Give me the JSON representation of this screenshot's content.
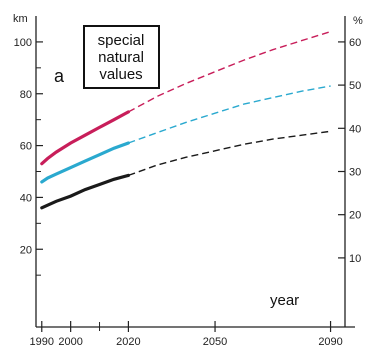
{
  "chart_data": {
    "type": "line",
    "panel_letter": "a",
    "box_lines": [
      "special",
      "natural",
      "values"
    ],
    "y_unit_left": "km",
    "y_unit_right": "%",
    "xlabel": "year",
    "x_ticks": [
      1990,
      2000,
      2020,
      2050,
      2090
    ],
    "xlim": [
      1988,
      2095
    ],
    "y_left_ticks": [
      20,
      40,
      60,
      80,
      100
    ],
    "y_left_lim": [
      -10,
      110
    ],
    "y_right_ticks": [
      10,
      20,
      30,
      40,
      50,
      60
    ],
    "grid": false,
    "series": [
      {
        "color": "#c81e5a",
        "solid": [
          [
            1990,
            53
          ],
          [
            1992,
            55
          ],
          [
            1995,
            57.5
          ],
          [
            2000,
            61
          ],
          [
            2005,
            64
          ],
          [
            2010,
            67
          ],
          [
            2015,
            70
          ],
          [
            2020,
            73
          ]
        ],
        "dashed": [
          [
            2020,
            73
          ],
          [
            2030,
            79
          ],
          [
            2040,
            84
          ],
          [
            2050,
            88.5
          ],
          [
            2060,
            93
          ],
          [
            2070,
            97
          ],
          [
            2080,
            100.5
          ],
          [
            2090,
            104
          ]
        ]
      },
      {
        "color": "#2aa9cf",
        "solid": [
          [
            1990,
            46
          ],
          [
            1992,
            47.5
          ],
          [
            1995,
            49
          ],
          [
            2000,
            51.5
          ],
          [
            2005,
            54
          ],
          [
            2010,
            56.5
          ],
          [
            2015,
            59
          ],
          [
            2020,
            61
          ]
        ],
        "dashed": [
          [
            2020,
            61
          ],
          [
            2030,
            65
          ],
          [
            2040,
            69
          ],
          [
            2050,
            72.5
          ],
          [
            2060,
            76
          ],
          [
            2070,
            78.5
          ],
          [
            2080,
            81
          ],
          [
            2090,
            83
          ]
        ]
      },
      {
        "color": "#1a1a1a",
        "solid": [
          [
            1990,
            36
          ],
          [
            1992,
            37
          ],
          [
            1995,
            38.5
          ],
          [
            2000,
            40.5
          ],
          [
            2005,
            43
          ],
          [
            2010,
            45
          ],
          [
            2015,
            47
          ],
          [
            2020,
            48.5
          ]
        ],
        "dashed": [
          [
            2020,
            48.5
          ],
          [
            2030,
            52.5
          ],
          [
            2040,
            55.5
          ],
          [
            2050,
            58
          ],
          [
            2060,
            60.5
          ],
          [
            2070,
            62.5
          ],
          [
            2080,
            64
          ],
          [
            2090,
            65.5
          ]
        ]
      }
    ]
  }
}
